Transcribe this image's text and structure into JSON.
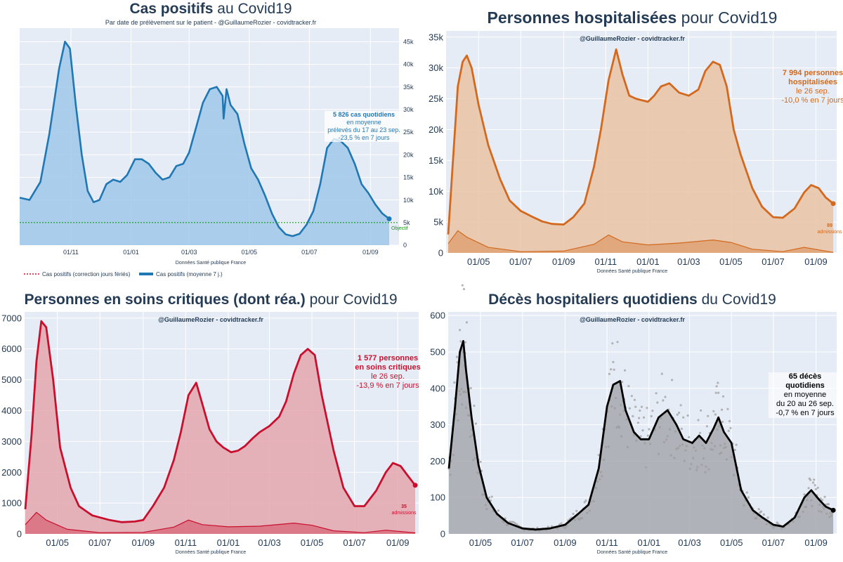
{
  "colors": {
    "cases": "#1f77b4",
    "cases_fill": "#9fc8ea",
    "hosp": "#d2691e",
    "hosp_fill": "#e9c3a3",
    "icu": "#c8102e",
    "icu_fill": "#e4a7ae",
    "deaths": "#000000",
    "deaths_fill": "#a4a8ad",
    "deaths_dots": "#9a9a9a",
    "objective": "#119911",
    "plot_bg": "#e6ecf5",
    "text": "#243b55"
  },
  "chart_data": [
    {
      "id": "cases",
      "type": "area",
      "title_bold": "Cas positifs",
      "title_rest": " au Covid19",
      "subtitle": "Par date de prélèvement sur le patient - @GuillaumeRozier - covidtracker.fr",
      "source": "Données Santé publique France",
      "y_axis_side": "right",
      "ylim": [
        0,
        48000
      ],
      "yticks": [
        0,
        5000,
        10000,
        15000,
        20000,
        25000,
        30000,
        35000,
        40000,
        45000
      ],
      "ytick_labels": [
        "0",
        "5k",
        "10k",
        "15k",
        "20k",
        "25k",
        "30k",
        "35k",
        "40k",
        "45k"
      ],
      "xlim": [
        "2020-09-10",
        "2021-09-30"
      ],
      "xticks": [
        "2020-11-01",
        "2021-01-01",
        "2021-03-01",
        "2021-05-01",
        "2021-07-01",
        "2021-09-01"
      ],
      "xtick_labels": [
        "01/11",
        "01/01",
        "01/03",
        "01/05",
        "01/07",
        "01/09"
      ],
      "series": [
        {
          "name": "Cas positifs (moyenne 7 j.)",
          "x": [
            "2020-09-10",
            "2020-09-20",
            "2020-10-01",
            "2020-10-10",
            "2020-10-20",
            "2020-10-26",
            "2020-10-31",
            "2020-11-06",
            "2020-11-12",
            "2020-11-18",
            "2020-11-24",
            "2020-11-30",
            "2020-12-07",
            "2020-12-14",
            "2020-12-21",
            "2020-12-28",
            "2021-01-05",
            "2021-01-12",
            "2021-01-19",
            "2021-01-26",
            "2021-02-02",
            "2021-02-09",
            "2021-02-16",
            "2021-02-23",
            "2021-03-01",
            "2021-03-08",
            "2021-03-15",
            "2021-03-22",
            "2021-03-29",
            "2021-04-04",
            "2021-04-05",
            "2021-04-08",
            "2021-04-12",
            "2021-04-19",
            "2021-04-26",
            "2021-05-03",
            "2021-05-10",
            "2021-05-17",
            "2021-05-24",
            "2021-05-31",
            "2021-06-07",
            "2021-06-14",
            "2021-06-21",
            "2021-06-28",
            "2021-07-05",
            "2021-07-12",
            "2021-07-19",
            "2021-07-26",
            "2021-08-02",
            "2021-08-09",
            "2021-08-16",
            "2021-08-23",
            "2021-08-30",
            "2021-09-06",
            "2021-09-13",
            "2021-09-20"
          ],
          "y": [
            10500,
            10000,
            14000,
            24500,
            39000,
            45000,
            43500,
            31000,
            20000,
            12000,
            9500,
            10000,
            13500,
            14500,
            14000,
            15500,
            19000,
            19000,
            18000,
            16000,
            14500,
            15000,
            17500,
            18000,
            20500,
            26000,
            31500,
            34500,
            35000,
            33000,
            28000,
            34500,
            31000,
            29000,
            22500,
            17000,
            14500,
            11000,
            7000,
            4000,
            2400,
            2000,
            2500,
            4500,
            7500,
            13500,
            21500,
            23500,
            23000,
            21500,
            18000,
            13500,
            11500,
            9000,
            7000,
            5826
          ]
        }
      ],
      "objective_value": 5000,
      "objective_label": "Objectif",
      "legend": [
        "Cas positifs (correction jours fériés)",
        "Cas positifs (moyenne 7 j.)"
      ],
      "annotation": [
        "5 826 cas quotidiens",
        "en moyenne",
        "prélevés du 17 au 23 sep.",
        "-23,5 % en 7 jours"
      ]
    },
    {
      "id": "hosp",
      "type": "area",
      "title_bold": "Personnes hospitalisées",
      "title_rest": " pour Covid19",
      "subtitle": "@GuillaumeRozier - covidtracker.fr",
      "source": "Données Santé publique France",
      "y_axis_side": "left",
      "ylim": [
        0,
        36000
      ],
      "yticks": [
        0,
        5000,
        10000,
        15000,
        20000,
        25000,
        30000,
        35000
      ],
      "ytick_labels": [
        "0",
        "5k",
        "10k",
        "15k",
        "20k",
        "25k",
        "30k",
        "35k"
      ],
      "xlim": [
        "2020-03-15",
        "2021-10-01"
      ],
      "xticks": [
        "2020-05-01",
        "2020-07-01",
        "2020-09-01",
        "2020-11-01",
        "2021-01-01",
        "2021-03-01",
        "2021-05-01",
        "2021-07-01",
        "2021-09-01"
      ],
      "xtick_labels": [
        "01/05",
        "01/07",
        "01/09",
        "01/11",
        "01/01",
        "01/03",
        "01/05",
        "01/07",
        "01/09"
      ],
      "series": [
        {
          "name": "hospitalisées",
          "x": [
            "2020-03-18",
            "2020-03-25",
            "2020-04-01",
            "2020-04-08",
            "2020-04-14",
            "2020-04-21",
            "2020-05-01",
            "2020-05-15",
            "2020-06-01",
            "2020-06-15",
            "2020-07-01",
            "2020-07-15",
            "2020-08-01",
            "2020-08-15",
            "2020-09-01",
            "2020-09-15",
            "2020-10-01",
            "2020-10-15",
            "2020-10-25",
            "2020-11-05",
            "2020-11-16",
            "2020-11-25",
            "2020-12-05",
            "2020-12-15",
            "2021-01-01",
            "2021-01-10",
            "2021-01-20",
            "2021-02-01",
            "2021-02-15",
            "2021-03-01",
            "2021-03-15",
            "2021-03-25",
            "2021-04-05",
            "2021-04-15",
            "2021-04-25",
            "2021-05-05",
            "2021-05-15",
            "2021-06-01",
            "2021-06-15",
            "2021-07-01",
            "2021-07-15",
            "2021-08-01",
            "2021-08-15",
            "2021-08-25",
            "2021-09-05",
            "2021-09-15",
            "2021-09-26"
          ],
          "y": [
            3000,
            15000,
            27000,
            31000,
            32000,
            30000,
            24000,
            17500,
            12000,
            8500,
            6800,
            6000,
            5100,
            4700,
            4600,
            5800,
            8000,
            14000,
            20000,
            28000,
            33000,
            29000,
            25500,
            25000,
            24500,
            25500,
            27000,
            27500,
            26000,
            25500,
            26500,
            29500,
            31000,
            30500,
            27000,
            20000,
            16000,
            10500,
            7500,
            5800,
            5700,
            7200,
            9800,
            11000,
            10500,
            9000,
            7994
          ]
        },
        {
          "name": "admissions",
          "x": [
            "2020-03-18",
            "2020-04-01",
            "2020-04-15",
            "2020-05-15",
            "2020-07-01",
            "2020-09-01",
            "2020-10-15",
            "2020-11-05",
            "2020-11-25",
            "2021-01-01",
            "2021-02-15",
            "2021-04-05",
            "2021-05-01",
            "2021-06-01",
            "2021-07-15",
            "2021-08-15",
            "2021-09-26"
          ],
          "y": [
            1500,
            3600,
            2500,
            900,
            200,
            300,
            1400,
            2900,
            1800,
            1300,
            1600,
            2100,
            1700,
            600,
            200,
            900,
            89
          ]
        }
      ],
      "admissions_value": "89",
      "admissions_label": "admissions",
      "annotation": [
        "7 994 personnes",
        "hospitalisées",
        "le 26 sep.",
        "-10,0 % en 7 jours"
      ]
    },
    {
      "id": "icu",
      "type": "area",
      "title_bold": "Personnes en soins critiques (dont réa.)",
      "title_rest": " pour Covid19",
      "subtitle": "@GuillaumeRozier - covidtracker.fr",
      "source": "Données Santé publique France",
      "y_axis_side": "left",
      "ylim": [
        0,
        7200
      ],
      "yticks": [
        0,
        1000,
        2000,
        3000,
        4000,
        5000,
        6000,
        7000
      ],
      "ytick_labels": [
        "0",
        "1000",
        "2000",
        "3000",
        "4000",
        "5000",
        "6000",
        "7000"
      ],
      "xlim": [
        "2020-03-15",
        "2021-10-01"
      ],
      "xticks": [
        "2020-05-01",
        "2020-07-01",
        "2020-09-01",
        "2020-11-01",
        "2021-01-01",
        "2021-03-01",
        "2021-05-01",
        "2021-07-01",
        "2021-09-01"
      ],
      "xtick_labels": [
        "01/05",
        "01/07",
        "01/09",
        "01/11",
        "01/01",
        "01/03",
        "01/05",
        "01/07",
        "01/09"
      ],
      "series": [
        {
          "name": "soins critiques",
          "x": [
            "2020-03-16",
            "2020-03-25",
            "2020-04-01",
            "2020-04-08",
            "2020-04-15",
            "2020-04-25",
            "2020-05-05",
            "2020-05-20",
            "2020-06-01",
            "2020-06-20",
            "2020-07-15",
            "2020-08-01",
            "2020-08-20",
            "2020-09-01",
            "2020-09-15",
            "2020-10-01",
            "2020-10-15",
            "2020-10-25",
            "2020-11-05",
            "2020-11-16",
            "2020-11-25",
            "2020-12-05",
            "2020-12-15",
            "2020-12-25",
            "2021-01-05",
            "2021-01-15",
            "2021-01-25",
            "2021-02-05",
            "2021-02-15",
            "2021-03-01",
            "2021-03-15",
            "2021-03-25",
            "2021-04-05",
            "2021-04-15",
            "2021-04-25",
            "2021-05-05",
            "2021-05-15",
            "2021-06-01",
            "2021-06-15",
            "2021-07-01",
            "2021-07-15",
            "2021-08-01",
            "2021-08-15",
            "2021-08-25",
            "2021-09-05",
            "2021-09-15",
            "2021-09-26"
          ],
          "y": [
            800,
            3200,
            5600,
            6900,
            6700,
            5000,
            2800,
            1500,
            900,
            600,
            450,
            380,
            400,
            450,
            900,
            1500,
            2400,
            3300,
            4500,
            4900,
            4200,
            3400,
            3000,
            2800,
            2650,
            2700,
            2850,
            3100,
            3300,
            3500,
            3800,
            4300,
            5200,
            5800,
            6000,
            5800,
            4500,
            2700,
            1500,
            900,
            900,
            1400,
            2000,
            2300,
            2200,
            1900,
            1577
          ]
        },
        {
          "name": "admissions",
          "x": [
            "2020-03-16",
            "2020-04-01",
            "2020-04-15",
            "2020-05-15",
            "2020-07-01",
            "2020-09-01",
            "2020-10-15",
            "2020-11-05",
            "2020-11-25",
            "2021-01-01",
            "2021-02-15",
            "2021-04-05",
            "2021-05-01",
            "2021-06-01",
            "2021-07-15",
            "2021-08-15",
            "2021-09-26"
          ],
          "y": [
            300,
            700,
            450,
            150,
            40,
            50,
            220,
            450,
            300,
            230,
            250,
            350,
            280,
            100,
            40,
            120,
            35
          ]
        }
      ],
      "admissions_value": "35",
      "admissions_label": "admissions",
      "annotation": [
        "1 577 personnes",
        "en soins critiques",
        "le 26 sep.",
        "-13,9 % en 7 jours"
      ]
    },
    {
      "id": "deaths",
      "type": "area",
      "title_bold": "Décès hospitaliers quotidiens",
      "title_rest": " du Covid19",
      "subtitle": "@GuillaumeRozier - covidtracker.fr",
      "source": "Données Santé publique France",
      "y_axis_side": "left",
      "ylim": [
        0,
        610
      ],
      "yticks": [
        0,
        100,
        200,
        300,
        400,
        500,
        600
      ],
      "ytick_labels": [
        "0",
        "100",
        "200",
        "300",
        "400",
        "500",
        "600"
      ],
      "xlim": [
        "2020-03-15",
        "2021-10-01"
      ],
      "xticks": [
        "2020-05-01",
        "2020-07-01",
        "2020-09-01",
        "2020-11-01",
        "2021-01-01",
        "2021-03-01",
        "2021-05-01",
        "2021-07-01",
        "2021-09-01"
      ],
      "xtick_labels": [
        "01/05",
        "01/07",
        "01/09",
        "01/11",
        "01/01",
        "01/03",
        "01/05",
        "01/07",
        "01/09"
      ],
      "series": [
        {
          "name": "décès (moyenne 7 j.)",
          "x": [
            "2020-03-16",
            "2020-03-25",
            "2020-04-01",
            "2020-04-06",
            "2020-04-10",
            "2020-04-18",
            "2020-04-28",
            "2020-05-10",
            "2020-05-25",
            "2020-06-10",
            "2020-07-01",
            "2020-07-20",
            "2020-08-10",
            "2020-09-01",
            "2020-09-20",
            "2020-10-05",
            "2020-10-20",
            "2020-11-01",
            "2020-11-10",
            "2020-11-20",
            "2020-11-28",
            "2020-12-10",
            "2020-12-20",
            "2021-01-01",
            "2021-01-15",
            "2021-01-28",
            "2021-02-10",
            "2021-02-20",
            "2021-03-05",
            "2021-03-15",
            "2021-03-25",
            "2021-04-05",
            "2021-04-12",
            "2021-04-20",
            "2021-05-01",
            "2021-05-15",
            "2021-06-01",
            "2021-06-15",
            "2021-07-01",
            "2021-07-15",
            "2021-08-01",
            "2021-08-15",
            "2021-08-25",
            "2021-09-05",
            "2021-09-15",
            "2021-09-26"
          ],
          "y": [
            180,
            350,
            500,
            530,
            450,
            320,
            190,
            100,
            55,
            30,
            15,
            12,
            15,
            25,
            55,
            80,
            180,
            350,
            410,
            420,
            340,
            280,
            260,
            260,
            320,
            340,
            300,
            260,
            250,
            270,
            250,
            290,
            320,
            280,
            250,
            120,
            65,
            45,
            25,
            20,
            45,
            100,
            120,
            95,
            75,
            65
          ]
        }
      ],
      "annotation": [
        "65 décès quotidiens",
        "en moyenne",
        "du 20 au 26 sep.",
        "-0,7 % en 7 jours"
      ]
    }
  ]
}
